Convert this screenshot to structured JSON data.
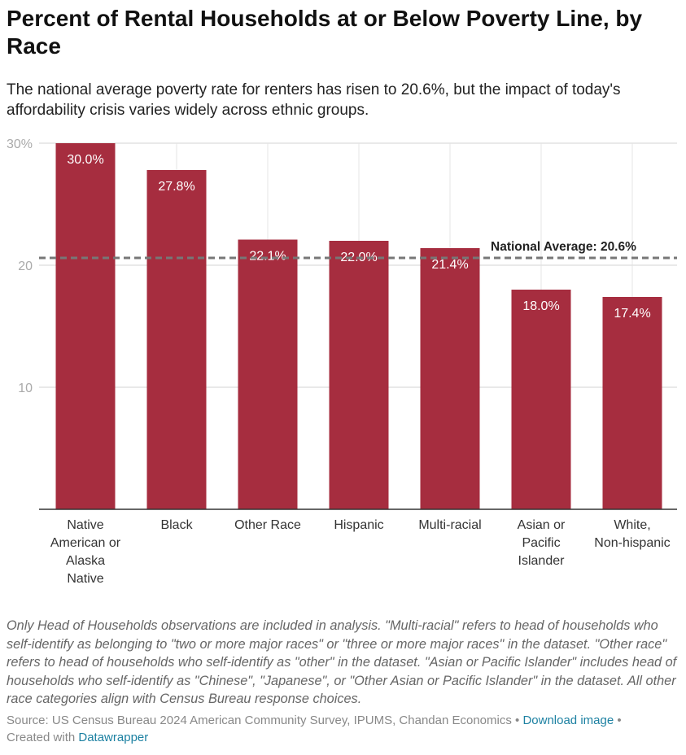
{
  "title": "Percent of Rental Households at or Below Poverty Line, by Race",
  "subtitle": "The national average poverty rate for renters has risen to 20.6%, but the impact of today's affordability crisis varies widely across ethnic groups.",
  "chart_data": {
    "type": "bar",
    "categories": [
      "Native American or Alaska Native",
      "Black",
      "Other Race",
      "Hispanic",
      "Multi-racial",
      "Asian or Pacific Islander",
      "White, Non-hispanic"
    ],
    "values": [
      30.0,
      27.8,
      22.1,
      22.0,
      21.4,
      18.0,
      17.4
    ],
    "value_labels": [
      "30.0%",
      "27.8%",
      "22.1%",
      "22.0%",
      "21.4%",
      "18.0%",
      "17.4%"
    ],
    "ylim": [
      0,
      30
    ],
    "yticks": [
      10,
      20,
      30
    ],
    "ytick_labels": [
      "10",
      "20",
      "30%"
    ],
    "grid": true,
    "bar_color": "#a62d3f",
    "reference_line": {
      "value": 20.6,
      "label": "National Average: 20.6%"
    }
  },
  "notes": "Only Head of Households observations are included in analysis. \"Multi-racial\" refers to head of households who self-identify as belonging to \"two or more major races\" or \"three or more major races\" in the dataset. \"Other race\" refers to head of households who self-identify as \"other\" in the dataset. \"Asian or Pacific Islander\" includes head of households who self-identify as \"Chinese\", \"Japanese\", or \"Other Asian or Pacific Islander\" in the dataset. All other race categories align with Census Bureau response choices.",
  "footer": {
    "source": "Source: US Census Bureau 2024 American Community Survey, IPUMS, Chandan Economics",
    "sep": " • ",
    "download": "Download image",
    "created": "Created with ",
    "datawrapper": "Datawrapper"
  }
}
